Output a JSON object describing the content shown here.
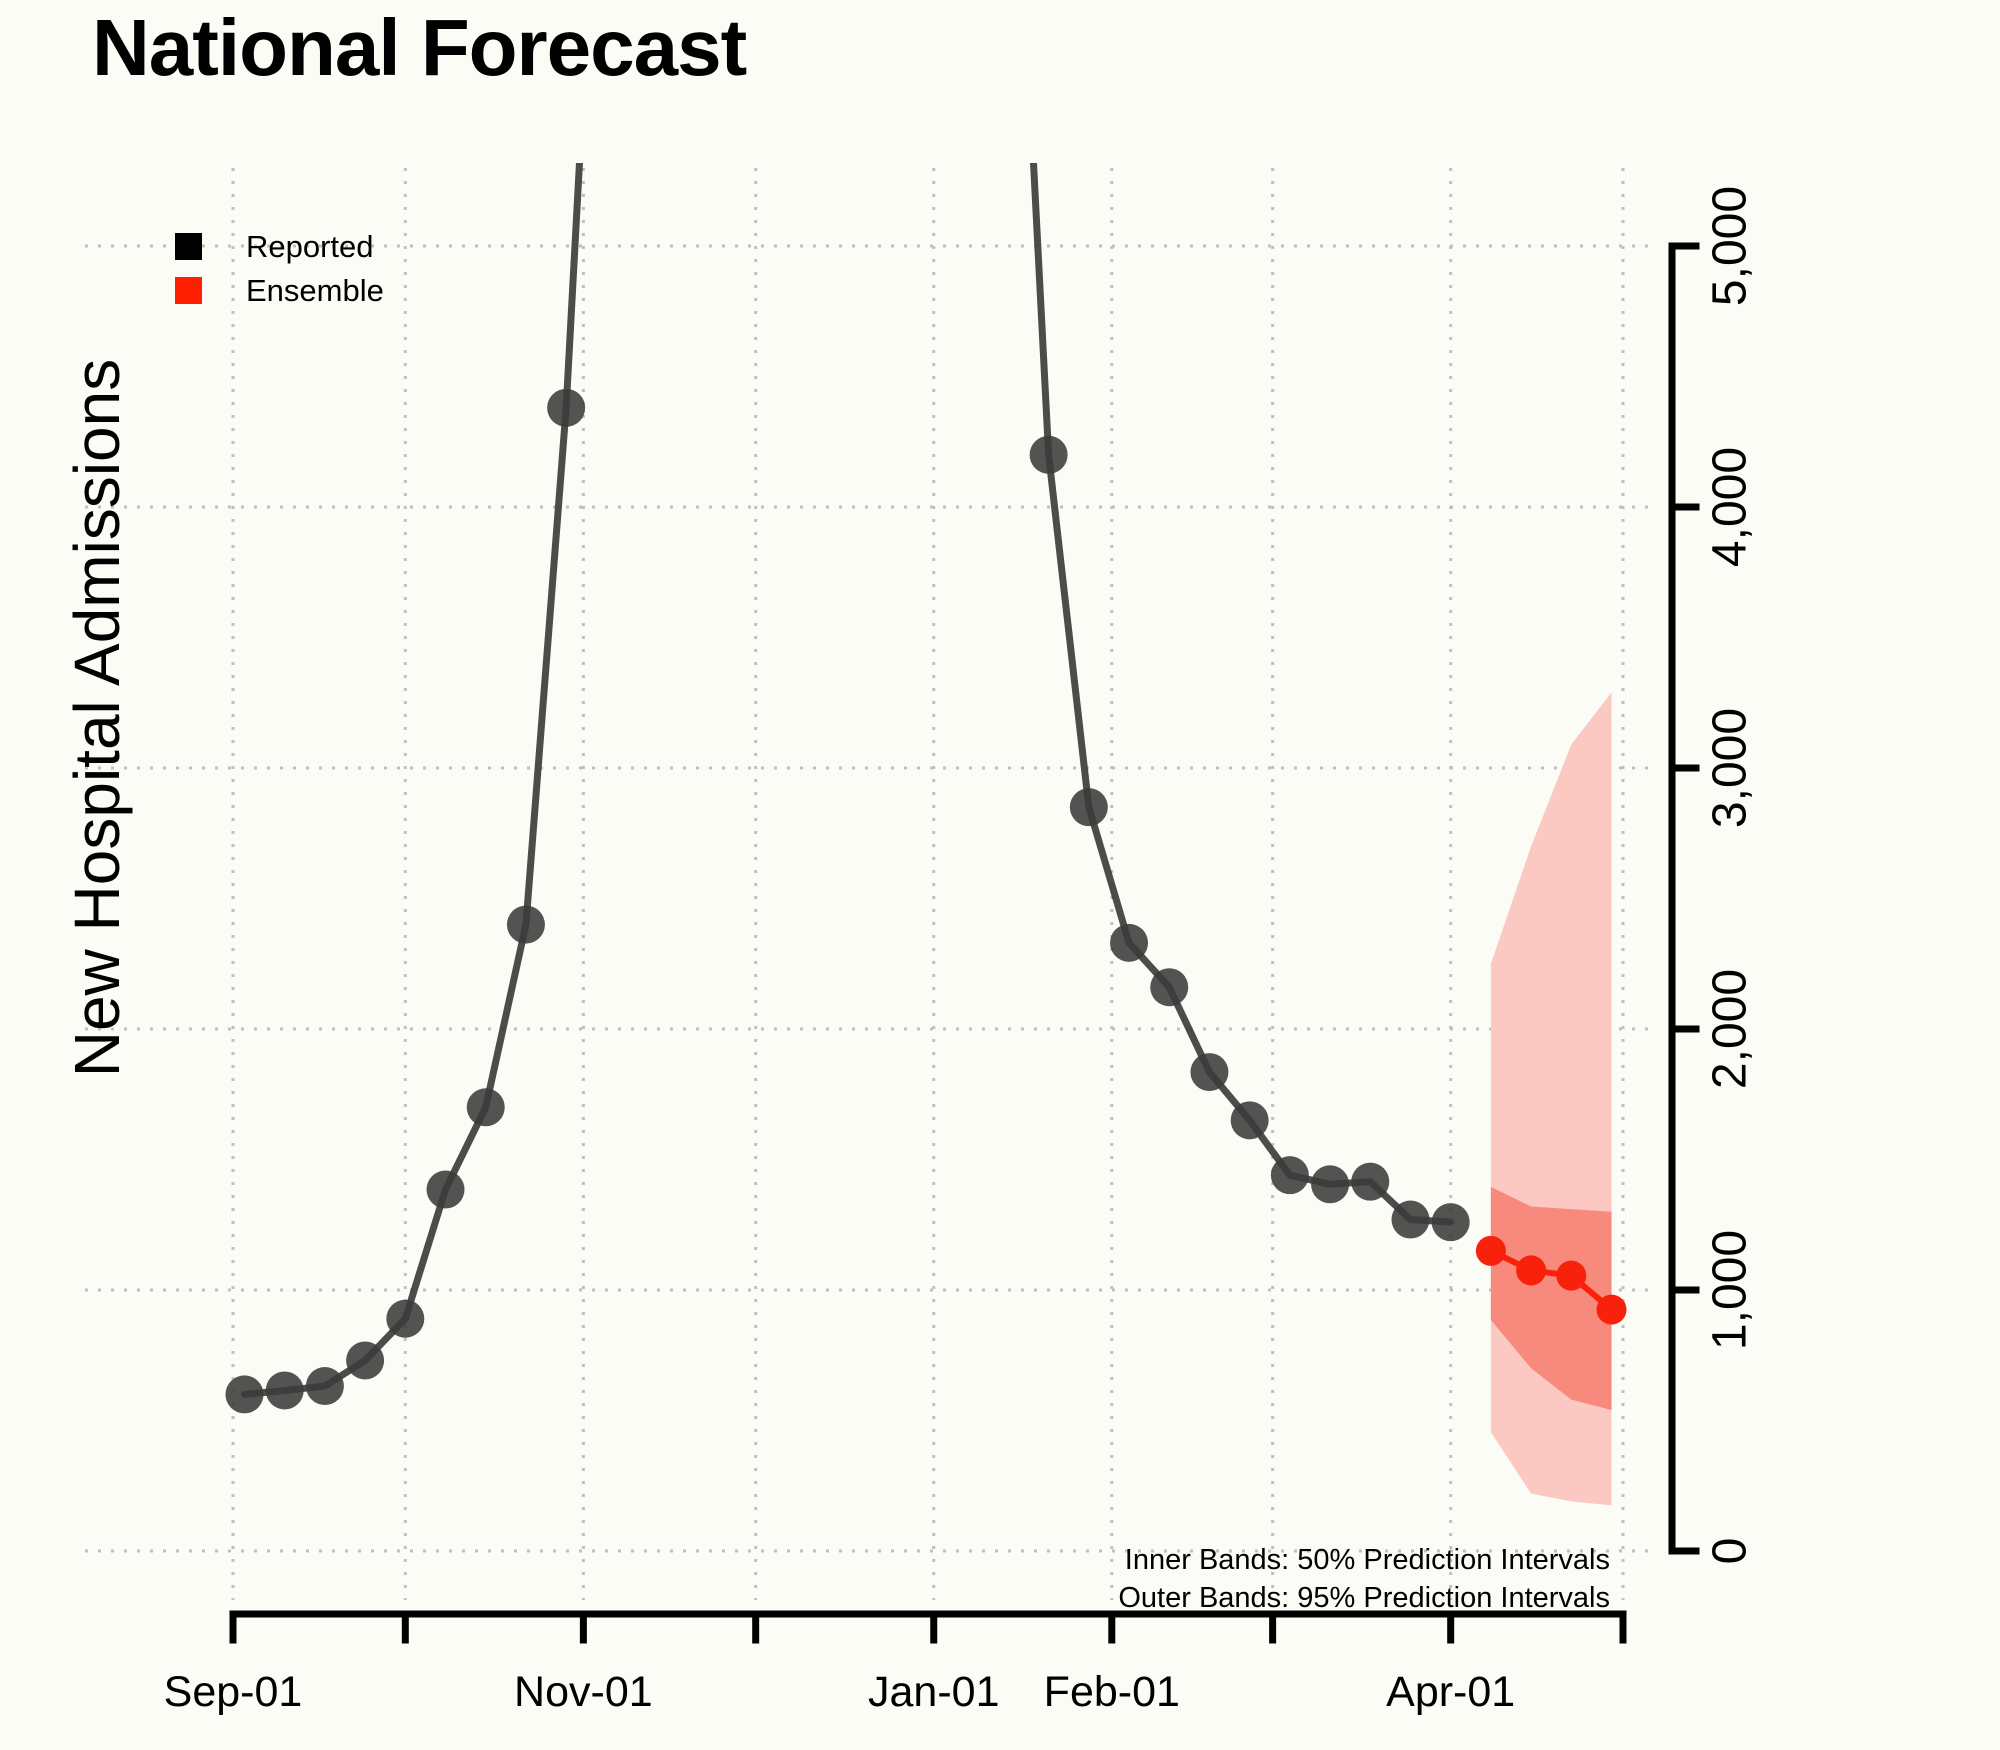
{
  "title": "National Forecast",
  "y_axis_label": "New Hospital Admissions",
  "legend": {
    "items": [
      {
        "label": "Reported",
        "color": "#000000"
      },
      {
        "label": "Ensemble",
        "color": "#ff2000"
      }
    ]
  },
  "notes": {
    "line1": "Inner Bands: 50% Prediction Intervals",
    "line2": "Outer Bands: 95% Prediction Intervals"
  },
  "colors": {
    "reported_line": "#333333",
    "reported_point": "#3b3b3b",
    "ensemble": "#f8220c",
    "inner_band": "#f78a7c",
    "outer_band": "#fbc8c2",
    "gridline": "#bfbfbf",
    "axis": "#000000",
    "background": "#fcfcf7"
  },
  "chart_data": {
    "type": "line",
    "title": "National Forecast",
    "xlabel": "",
    "ylabel": "New Hospital Admissions",
    "ylim": [
      0,
      5000
    ],
    "grid": true,
    "legend_position": "top-left",
    "y_ticks": [
      {
        "value": 0,
        "label": "0"
      },
      {
        "value": 1000,
        "label": "1,000"
      },
      {
        "value": 2000,
        "label": "2,000"
      },
      {
        "value": 3000,
        "label": "3,000"
      },
      {
        "value": 4000,
        "label": "4,000"
      },
      {
        "value": 5000,
        "label": "5,000"
      }
    ],
    "x_ticks": [
      {
        "day": 0,
        "label": "Sep-01"
      },
      {
        "day": 30,
        "label": ""
      },
      {
        "day": 61,
        "label": "Nov-01"
      },
      {
        "day": 91,
        "label": ""
      },
      {
        "day": 122,
        "label": "Jan-01"
      },
      {
        "day": 153,
        "label": "Feb-01"
      },
      {
        "day": 181,
        "label": ""
      },
      {
        "day": 212,
        "label": "Apr-01"
      },
      {
        "day": 242,
        "label": ""
      }
    ],
    "series": [
      {
        "name": "Reported",
        "style": "line-with-points",
        "segments": [
          [
            {
              "date": "Sep-03",
              "day": 2,
              "value": 600
            },
            {
              "date": "Sep-10",
              "day": 9,
              "value": 615
            },
            {
              "date": "Sep-17",
              "day": 16,
              "value": 632
            },
            {
              "date": "Sep-24",
              "day": 23,
              "value": 730
            },
            {
              "date": "Oct-01",
              "day": 30,
              "value": 890
            },
            {
              "date": "Oct-08",
              "day": 37,
              "value": 1385
            },
            {
              "date": "Oct-15",
              "day": 44,
              "value": 1700
            },
            {
              "date": "Oct-22",
              "day": 51,
              "value": 2400
            },
            {
              "date": "Oct-29",
              "day": 58,
              "value": 4380
            },
            {
              "date": "Nov-03",
              "day": 63,
              "value": 6400,
              "offchart": true
            }
          ],
          [
            {
              "date": "Jan-17",
              "day": 138,
              "value": 5900,
              "offchart": true
            },
            {
              "date": "Jan-21",
              "day": 142,
              "value": 4200
            },
            {
              "date": "Jan-28",
              "day": 149,
              "value": 2850
            },
            {
              "date": "Feb-04",
              "day": 156,
              "value": 2330
            },
            {
              "date": "Feb-11",
              "day": 163,
              "value": 2160
            },
            {
              "date": "Feb-18",
              "day": 170,
              "value": 1835
            },
            {
              "date": "Feb-25",
              "day": 177,
              "value": 1650
            },
            {
              "date": "Mar-04",
              "day": 184,
              "value": 1440
            },
            {
              "date": "Mar-11",
              "day": 191,
              "value": 1405
            },
            {
              "date": "Mar-18",
              "day": 198,
              "value": 1415
            },
            {
              "date": "Mar-25",
              "day": 205,
              "value": 1270
            },
            {
              "date": "Apr-01",
              "day": 212,
              "value": 1260
            }
          ]
        ]
      },
      {
        "name": "Ensemble",
        "style": "line-with-points",
        "segments": [
          [
            {
              "date": "Apr-08",
              "day": 219,
              "value": 1150
            },
            {
              "date": "Apr-15",
              "day": 226,
              "value": 1075
            },
            {
              "date": "Apr-22",
              "day": 233,
              "value": 1055
            },
            {
              "date": "Apr-29",
              "day": 240,
              "value": 925
            }
          ]
        ]
      }
    ],
    "bands": [
      {
        "name": "Outer Bands: 95% Prediction Intervals",
        "level": "95%",
        "points": [
          {
            "date": "Apr-08",
            "day": 219,
            "lower": 455,
            "upper": 2250
          },
          {
            "date": "Apr-15",
            "day": 226,
            "lower": 220,
            "upper": 2700
          },
          {
            "date": "Apr-22",
            "day": 233,
            "lower": 190,
            "upper": 3090
          },
          {
            "date": "Apr-29",
            "day": 240,
            "lower": 175,
            "upper": 3290
          }
        ]
      },
      {
        "name": "Inner Bands: 50% Prediction Intervals",
        "level": "50%",
        "points": [
          {
            "date": "Apr-08",
            "day": 219,
            "lower": 885,
            "upper": 1395
          },
          {
            "date": "Apr-15",
            "day": 226,
            "lower": 700,
            "upper": 1320
          },
          {
            "date": "Apr-22",
            "day": 233,
            "lower": 580,
            "upper": 1310
          },
          {
            "date": "Apr-29",
            "day": 240,
            "lower": 540,
            "upper": 1300
          }
        ]
      }
    ]
  }
}
